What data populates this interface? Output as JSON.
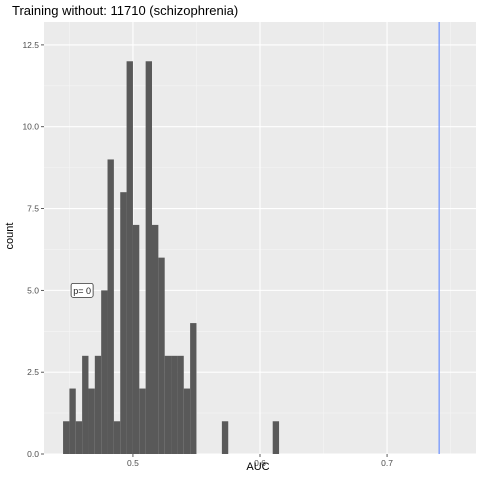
{
  "chart_data": {
    "type": "histogram",
    "title": "Training without: 11710 (schizophrenia)",
    "xlabel": "AUC",
    "ylabel": "count",
    "xlim": [
      0.43,
      0.77
    ],
    "ylim": [
      0,
      13.2
    ],
    "xticks": [
      0.5,
      0.6,
      0.7
    ],
    "xtick_labels": [
      "0.5",
      "0.6",
      "0.7"
    ],
    "yticks": [
      0.0,
      2.5,
      5.0,
      7.5,
      10.0,
      12.5
    ],
    "ytick_labels": [
      "0.0",
      "2.5",
      "5.0",
      "7.5",
      "10.0",
      "12.5"
    ],
    "bin_width": 0.005,
    "bins": [
      {
        "x": 0.4475,
        "count": 1
      },
      {
        "x": 0.4525,
        "count": 2
      },
      {
        "x": 0.4575,
        "count": 1
      },
      {
        "x": 0.4625,
        "count": 3
      },
      {
        "x": 0.4675,
        "count": 2
      },
      {
        "x": 0.4725,
        "count": 3
      },
      {
        "x": 0.4775,
        "count": 5
      },
      {
        "x": 0.4825,
        "count": 9
      },
      {
        "x": 0.4875,
        "count": 1
      },
      {
        "x": 0.4925,
        "count": 8
      },
      {
        "x": 0.4975,
        "count": 12
      },
      {
        "x": 0.5025,
        "count": 7
      },
      {
        "x": 0.5075,
        "count": 2
      },
      {
        "x": 0.5125,
        "count": 12
      },
      {
        "x": 0.5175,
        "count": 7
      },
      {
        "x": 0.5225,
        "count": 6
      },
      {
        "x": 0.5275,
        "count": 3
      },
      {
        "x": 0.5325,
        "count": 3
      },
      {
        "x": 0.5375,
        "count": 3
      },
      {
        "x": 0.5425,
        "count": 2
      },
      {
        "x": 0.5475,
        "count": 4
      },
      {
        "x": 0.5725,
        "count": 1
      },
      {
        "x": 0.6125,
        "count": 1
      }
    ],
    "reference_line": {
      "x": 0.741,
      "color": "#6a8fff"
    },
    "annotation": {
      "label": "p= 0",
      "x": 0.46,
      "y": 5.0
    },
    "colors": {
      "panel_background": "#ebebeb",
      "grid_major": "#ffffff",
      "bar_fill": "#595959"
    },
    "grid": true,
    "legend": false
  }
}
